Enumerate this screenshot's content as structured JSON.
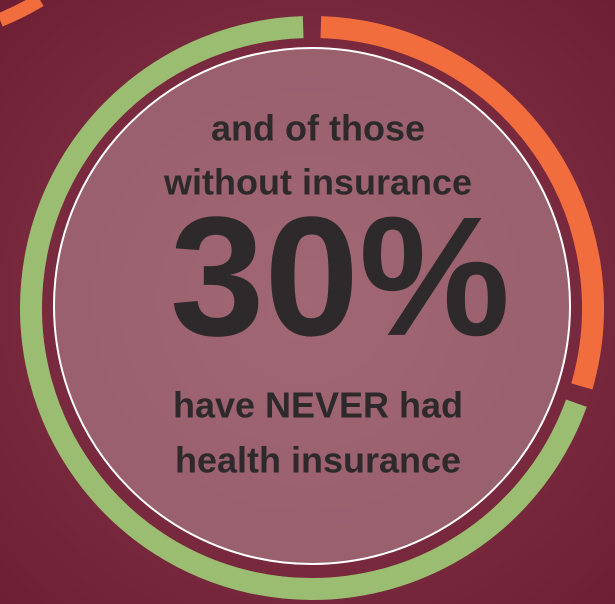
{
  "chart_data": {
    "type": "donut",
    "values": [
      30,
      70
    ],
    "value_labels": [
      "30%",
      null
    ],
    "colors": [
      "#f26d3d",
      "#9bbd72"
    ],
    "annotations": [
      "and of those",
      "without insurance",
      "have NEVER had",
      "health insurance"
    ]
  }
}
